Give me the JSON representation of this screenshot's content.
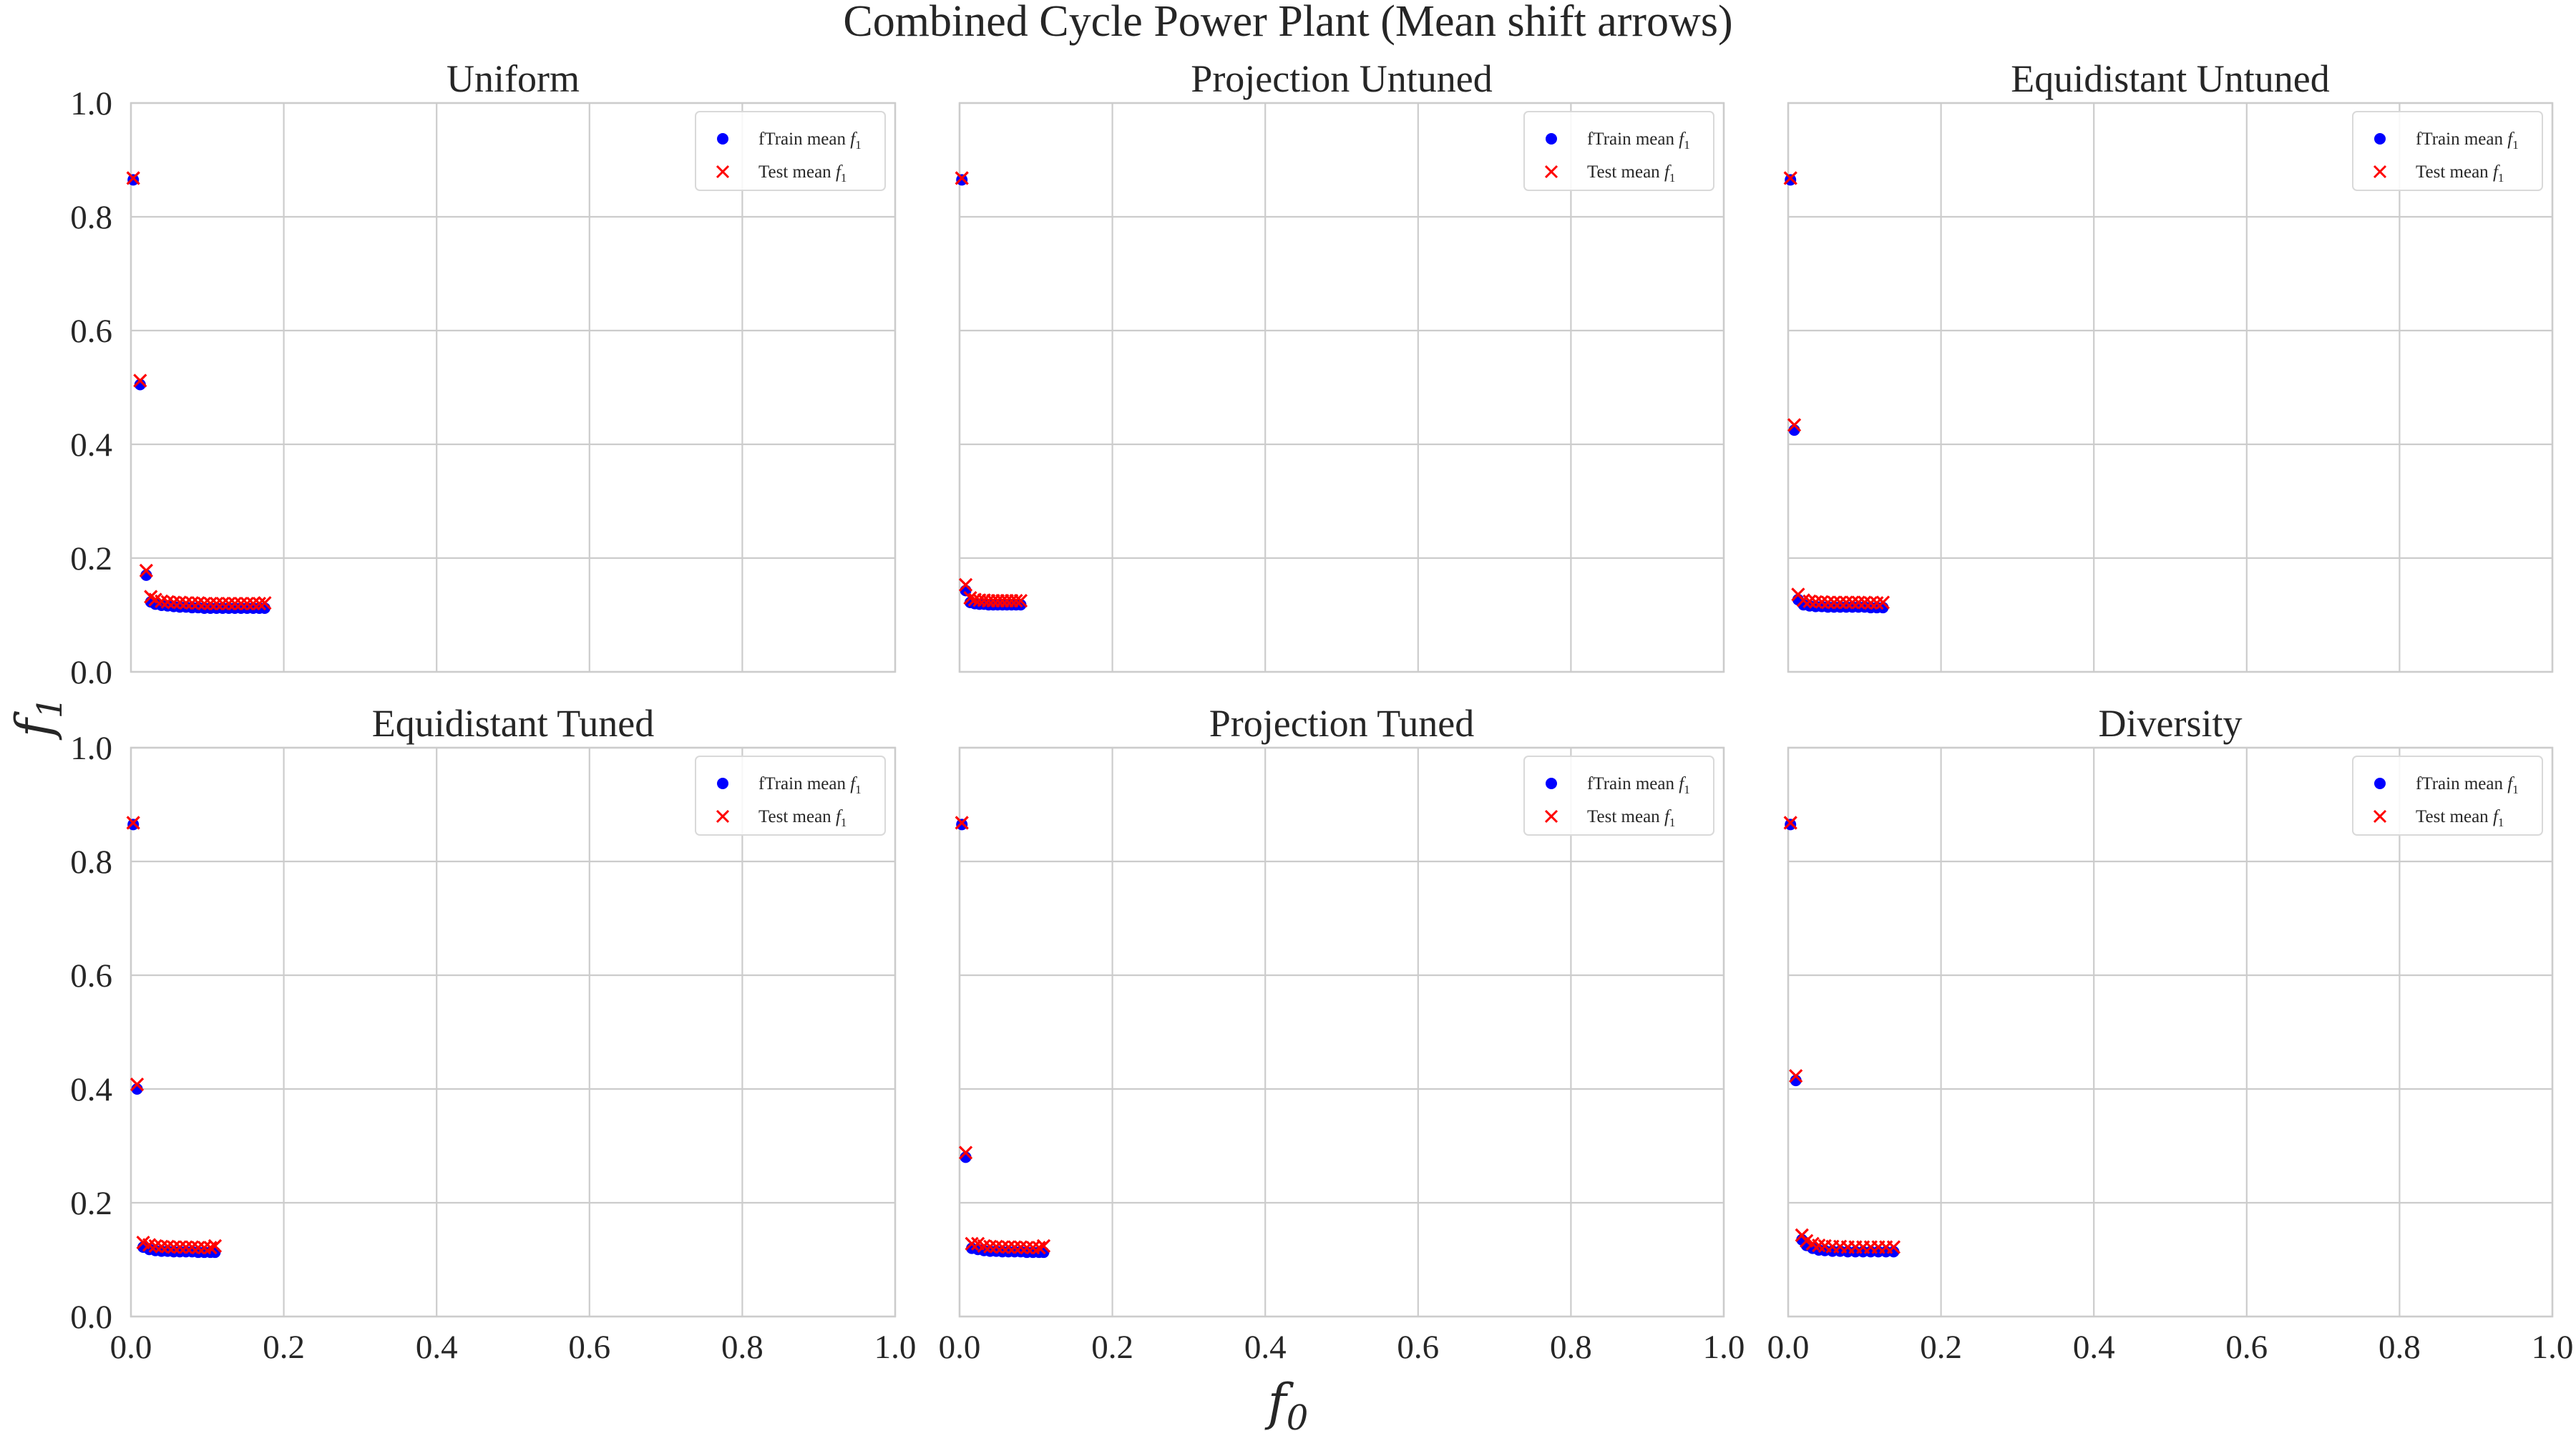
{
  "figure": {
    "title": "Combined Cycle Power Plant (Mean shift arrows)",
    "xlabel": "f0",
    "ylabel": "f1"
  },
  "colors": {
    "train": "#0000ff",
    "test": "#ff0000",
    "arrow": "#800080",
    "grid": "#cccccc",
    "spine": "#cccccc",
    "background": "#ffffff",
    "text": "#262626"
  },
  "legend": {
    "placement": "top-right",
    "train_prefix": "fTrain mean ",
    "test_prefix": "Test mean ",
    "var_base": "f",
    "var_sub": "1"
  },
  "chart_data": [
    {
      "type": "scatter",
      "title": "Uniform",
      "xlabel": "f0",
      "ylabel": "f1",
      "xlim": [
        0,
        1
      ],
      "ylim": [
        0,
        1
      ],
      "xticks": [
        "0.0",
        "0.2",
        "0.4",
        "0.6",
        "0.8",
        "1.0"
      ],
      "yticks": [
        "0.0",
        "0.2",
        "0.4",
        "0.6",
        "0.8",
        "1.0"
      ],
      "grid": true,
      "legend": "top-right",
      "series": [
        {
          "name": "fTrain mean f1",
          "marker": "circle",
          "color": "#0000ff",
          "points": [
            [
              0.003,
              0.865
            ],
            [
              0.012,
              0.505
            ],
            [
              0.02,
              0.17
            ],
            [
              0.026,
              0.123
            ],
            [
              0.032,
              0.119
            ],
            [
              0.04,
              0.117
            ],
            [
              0.048,
              0.116
            ],
            [
              0.056,
              0.115
            ],
            [
              0.064,
              0.114
            ],
            [
              0.072,
              0.114
            ],
            [
              0.08,
              0.113
            ],
            [
              0.088,
              0.113
            ],
            [
              0.096,
              0.112
            ],
            [
              0.104,
              0.112
            ],
            [
              0.112,
              0.112
            ],
            [
              0.12,
              0.112
            ],
            [
              0.128,
              0.112
            ],
            [
              0.136,
              0.112
            ],
            [
              0.144,
              0.112
            ],
            [
              0.152,
              0.112
            ],
            [
              0.16,
              0.112
            ],
            [
              0.168,
              0.112
            ],
            [
              0.175,
              0.112
            ]
          ]
        },
        {
          "name": "Test mean f1",
          "marker": "x",
          "color": "#ff0000",
          "points": [
            [
              0.003,
              0.868
            ],
            [
              0.012,
              0.512
            ],
            [
              0.02,
              0.178
            ],
            [
              0.026,
              0.132
            ],
            [
              0.032,
              0.127
            ],
            [
              0.04,
              0.124
            ],
            [
              0.048,
              0.123
            ],
            [
              0.056,
              0.122
            ],
            [
              0.064,
              0.122
            ],
            [
              0.072,
              0.121
            ],
            [
              0.08,
              0.121
            ],
            [
              0.088,
              0.121
            ],
            [
              0.096,
              0.12
            ],
            [
              0.104,
              0.12
            ],
            [
              0.112,
              0.12
            ],
            [
              0.12,
              0.12
            ],
            [
              0.128,
              0.12
            ],
            [
              0.136,
              0.12
            ],
            [
              0.144,
              0.12
            ],
            [
              0.152,
              0.12
            ],
            [
              0.16,
              0.12
            ],
            [
              0.168,
              0.12
            ],
            [
              0.175,
              0.121
            ]
          ]
        }
      ]
    },
    {
      "type": "scatter",
      "title": "Projection Untuned",
      "xlabel": "f0",
      "ylabel": "f1",
      "xlim": [
        0,
        1
      ],
      "ylim": [
        0,
        1
      ],
      "xticks": [
        "0.0",
        "0.2",
        "0.4",
        "0.6",
        "0.8",
        "1.0"
      ],
      "yticks": [
        "0.0",
        "0.2",
        "0.4",
        "0.6",
        "0.8",
        "1.0"
      ],
      "grid": true,
      "legend": "top-right",
      "series": [
        {
          "name": "fTrain mean f1",
          "marker": "circle",
          "color": "#0000ff",
          "points": [
            [
              0.003,
              0.865
            ],
            [
              0.008,
              0.143
            ],
            [
              0.014,
              0.122
            ],
            [
              0.02,
              0.12
            ],
            [
              0.026,
              0.119
            ],
            [
              0.032,
              0.119
            ],
            [
              0.038,
              0.118
            ],
            [
              0.044,
              0.118
            ],
            [
              0.05,
              0.118
            ],
            [
              0.056,
              0.118
            ],
            [
              0.062,
              0.118
            ],
            [
              0.068,
              0.118
            ],
            [
              0.074,
              0.118
            ],
            [
              0.08,
              0.118
            ]
          ]
        },
        {
          "name": "Test mean f1",
          "marker": "x",
          "color": "#ff0000",
          "points": [
            [
              0.003,
              0.868
            ],
            [
              0.008,
              0.153
            ],
            [
              0.014,
              0.13
            ],
            [
              0.02,
              0.127
            ],
            [
              0.026,
              0.126
            ],
            [
              0.032,
              0.126
            ],
            [
              0.038,
              0.125
            ],
            [
              0.044,
              0.125
            ],
            [
              0.05,
              0.125
            ],
            [
              0.056,
              0.125
            ],
            [
              0.062,
              0.125
            ],
            [
              0.068,
              0.125
            ],
            [
              0.074,
              0.125
            ],
            [
              0.08,
              0.125
            ]
          ]
        }
      ]
    },
    {
      "type": "scatter",
      "title": "Equidistant Untuned",
      "xlabel": "f0",
      "ylabel": "f1",
      "xlim": [
        0,
        1
      ],
      "ylim": [
        0,
        1
      ],
      "xticks": [
        "0.0",
        "0.2",
        "0.4",
        "0.6",
        "0.8",
        "1.0"
      ],
      "yticks": [
        "0.0",
        "0.2",
        "0.4",
        "0.6",
        "0.8",
        "1.0"
      ],
      "grid": true,
      "legend": "top-right",
      "series": [
        {
          "name": "fTrain mean f1",
          "marker": "circle",
          "color": "#0000ff",
          "points": [
            [
              0.003,
              0.865
            ],
            [
              0.008,
              0.425
            ],
            [
              0.013,
              0.127
            ],
            [
              0.02,
              0.118
            ],
            [
              0.028,
              0.116
            ],
            [
              0.036,
              0.115
            ],
            [
              0.044,
              0.115
            ],
            [
              0.052,
              0.114
            ],
            [
              0.06,
              0.114
            ],
            [
              0.068,
              0.114
            ],
            [
              0.076,
              0.114
            ],
            [
              0.084,
              0.114
            ],
            [
              0.092,
              0.114
            ],
            [
              0.1,
              0.114
            ],
            [
              0.108,
              0.113
            ],
            [
              0.116,
              0.113
            ],
            [
              0.124,
              0.113
            ]
          ]
        },
        {
          "name": "Test mean f1",
          "marker": "x",
          "color": "#ff0000",
          "points": [
            [
              0.003,
              0.868
            ],
            [
              0.008,
              0.434
            ],
            [
              0.013,
              0.136
            ],
            [
              0.02,
              0.126
            ],
            [
              0.028,
              0.124
            ],
            [
              0.036,
              0.123
            ],
            [
              0.044,
              0.123
            ],
            [
              0.052,
              0.122
            ],
            [
              0.06,
              0.122
            ],
            [
              0.068,
              0.122
            ],
            [
              0.076,
              0.122
            ],
            [
              0.084,
              0.122
            ],
            [
              0.092,
              0.122
            ],
            [
              0.1,
              0.122
            ],
            [
              0.108,
              0.121
            ],
            [
              0.116,
              0.121
            ],
            [
              0.124,
              0.122
            ]
          ]
        }
      ]
    },
    {
      "type": "scatter",
      "title": "Equidistant Tuned",
      "xlabel": "f0",
      "ylabel": "f1",
      "xlim": [
        0,
        1
      ],
      "ylim": [
        0,
        1
      ],
      "xticks": [
        "0.0",
        "0.2",
        "0.4",
        "0.6",
        "0.8",
        "1.0"
      ],
      "yticks": [
        "0.0",
        "0.2",
        "0.4",
        "0.6",
        "0.8",
        "1.0"
      ],
      "grid": true,
      "legend": "top-right",
      "series": [
        {
          "name": "fTrain mean f1",
          "marker": "circle",
          "color": "#0000ff",
          "points": [
            [
              0.003,
              0.865
            ],
            [
              0.008,
              0.4
            ],
            [
              0.016,
              0.122
            ],
            [
              0.024,
              0.118
            ],
            [
              0.032,
              0.116
            ],
            [
              0.04,
              0.115
            ],
            [
              0.048,
              0.115
            ],
            [
              0.056,
              0.114
            ],
            [
              0.064,
              0.114
            ],
            [
              0.072,
              0.114
            ],
            [
              0.08,
              0.114
            ],
            [
              0.088,
              0.113
            ],
            [
              0.096,
              0.113
            ],
            [
              0.104,
              0.113
            ],
            [
              0.11,
              0.113
            ]
          ]
        },
        {
          "name": "Test mean f1",
          "marker": "x",
          "color": "#ff0000",
          "points": [
            [
              0.003,
              0.868
            ],
            [
              0.008,
              0.408
            ],
            [
              0.016,
              0.13
            ],
            [
              0.024,
              0.126
            ],
            [
              0.032,
              0.124
            ],
            [
              0.04,
              0.123
            ],
            [
              0.048,
              0.123
            ],
            [
              0.056,
              0.122
            ],
            [
              0.064,
              0.122
            ],
            [
              0.072,
              0.122
            ],
            [
              0.08,
              0.122
            ],
            [
              0.088,
              0.121
            ],
            [
              0.096,
              0.121
            ],
            [
              0.104,
              0.121
            ],
            [
              0.11,
              0.124
            ]
          ]
        }
      ]
    },
    {
      "type": "scatter",
      "title": "Projection Tuned",
      "xlabel": "f0",
      "ylabel": "f1",
      "xlim": [
        0,
        1
      ],
      "ylim": [
        0,
        1
      ],
      "xticks": [
        "0.0",
        "0.2",
        "0.4",
        "0.6",
        "0.8",
        "1.0"
      ],
      "yticks": [
        "0.0",
        "0.2",
        "0.4",
        "0.6",
        "0.8",
        "1.0"
      ],
      "grid": true,
      "legend": "top-right",
      "series": [
        {
          "name": "fTrain mean f1",
          "marker": "circle",
          "color": "#0000ff",
          "points": [
            [
              0.003,
              0.865
            ],
            [
              0.008,
              0.28
            ],
            [
              0.016,
              0.12
            ],
            [
              0.024,
              0.118
            ],
            [
              0.032,
              0.116
            ],
            [
              0.04,
              0.115
            ],
            [
              0.048,
              0.115
            ],
            [
              0.056,
              0.114
            ],
            [
              0.064,
              0.114
            ],
            [
              0.072,
              0.114
            ],
            [
              0.08,
              0.114
            ],
            [
              0.088,
              0.113
            ],
            [
              0.096,
              0.113
            ],
            [
              0.104,
              0.113
            ],
            [
              0.11,
              0.113
            ]
          ]
        },
        {
          "name": "Test mean f1",
          "marker": "x",
          "color": "#ff0000",
          "points": [
            [
              0.003,
              0.868
            ],
            [
              0.008,
              0.288
            ],
            [
              0.016,
              0.128
            ],
            [
              0.024,
              0.128
            ],
            [
              0.032,
              0.124
            ],
            [
              0.04,
              0.123
            ],
            [
              0.048,
              0.123
            ],
            [
              0.056,
              0.122
            ],
            [
              0.064,
              0.122
            ],
            [
              0.072,
              0.122
            ],
            [
              0.08,
              0.122
            ],
            [
              0.088,
              0.121
            ],
            [
              0.096,
              0.121
            ],
            [
              0.104,
              0.121
            ],
            [
              0.11,
              0.124
            ]
          ]
        }
      ]
    },
    {
      "type": "scatter",
      "title": "Diversity",
      "xlabel": "f0",
      "ylabel": "f1",
      "xlim": [
        0,
        1
      ],
      "ylim": [
        0,
        1
      ],
      "xticks": [
        "0.0",
        "0.2",
        "0.4",
        "0.6",
        "0.8",
        "1.0"
      ],
      "yticks": [
        "0.0",
        "0.2",
        "0.4",
        "0.6",
        "0.8",
        "1.0"
      ],
      "grid": true,
      "legend": "top-right",
      "series": [
        {
          "name": "fTrain mean f1",
          "marker": "circle",
          "color": "#0000ff",
          "points": [
            [
              0.003,
              0.865
            ],
            [
              0.01,
              0.415
            ],
            [
              0.018,
              0.135
            ],
            [
              0.024,
              0.125
            ],
            [
              0.032,
              0.12
            ],
            [
              0.04,
              0.117
            ],
            [
              0.048,
              0.116
            ],
            [
              0.058,
              0.115
            ],
            [
              0.068,
              0.115
            ],
            [
              0.078,
              0.114
            ],
            [
              0.088,
              0.114
            ],
            [
              0.098,
              0.114
            ],
            [
              0.108,
              0.114
            ],
            [
              0.118,
              0.114
            ],
            [
              0.128,
              0.114
            ],
            [
              0.138,
              0.114
            ]
          ]
        },
        {
          "name": "Test mean f1",
          "marker": "x",
          "color": "#ff0000",
          "points": [
            [
              0.003,
              0.868
            ],
            [
              0.01,
              0.423
            ],
            [
              0.018,
              0.143
            ],
            [
              0.024,
              0.133
            ],
            [
              0.032,
              0.128
            ],
            [
              0.04,
              0.125
            ],
            [
              0.048,
              0.124
            ],
            [
              0.058,
              0.123
            ],
            [
              0.068,
              0.123
            ],
            [
              0.078,
              0.122
            ],
            [
              0.088,
              0.122
            ],
            [
              0.098,
              0.122
            ],
            [
              0.108,
              0.122
            ],
            [
              0.118,
              0.122
            ],
            [
              0.128,
              0.122
            ],
            [
              0.138,
              0.122
            ]
          ]
        }
      ]
    }
  ]
}
